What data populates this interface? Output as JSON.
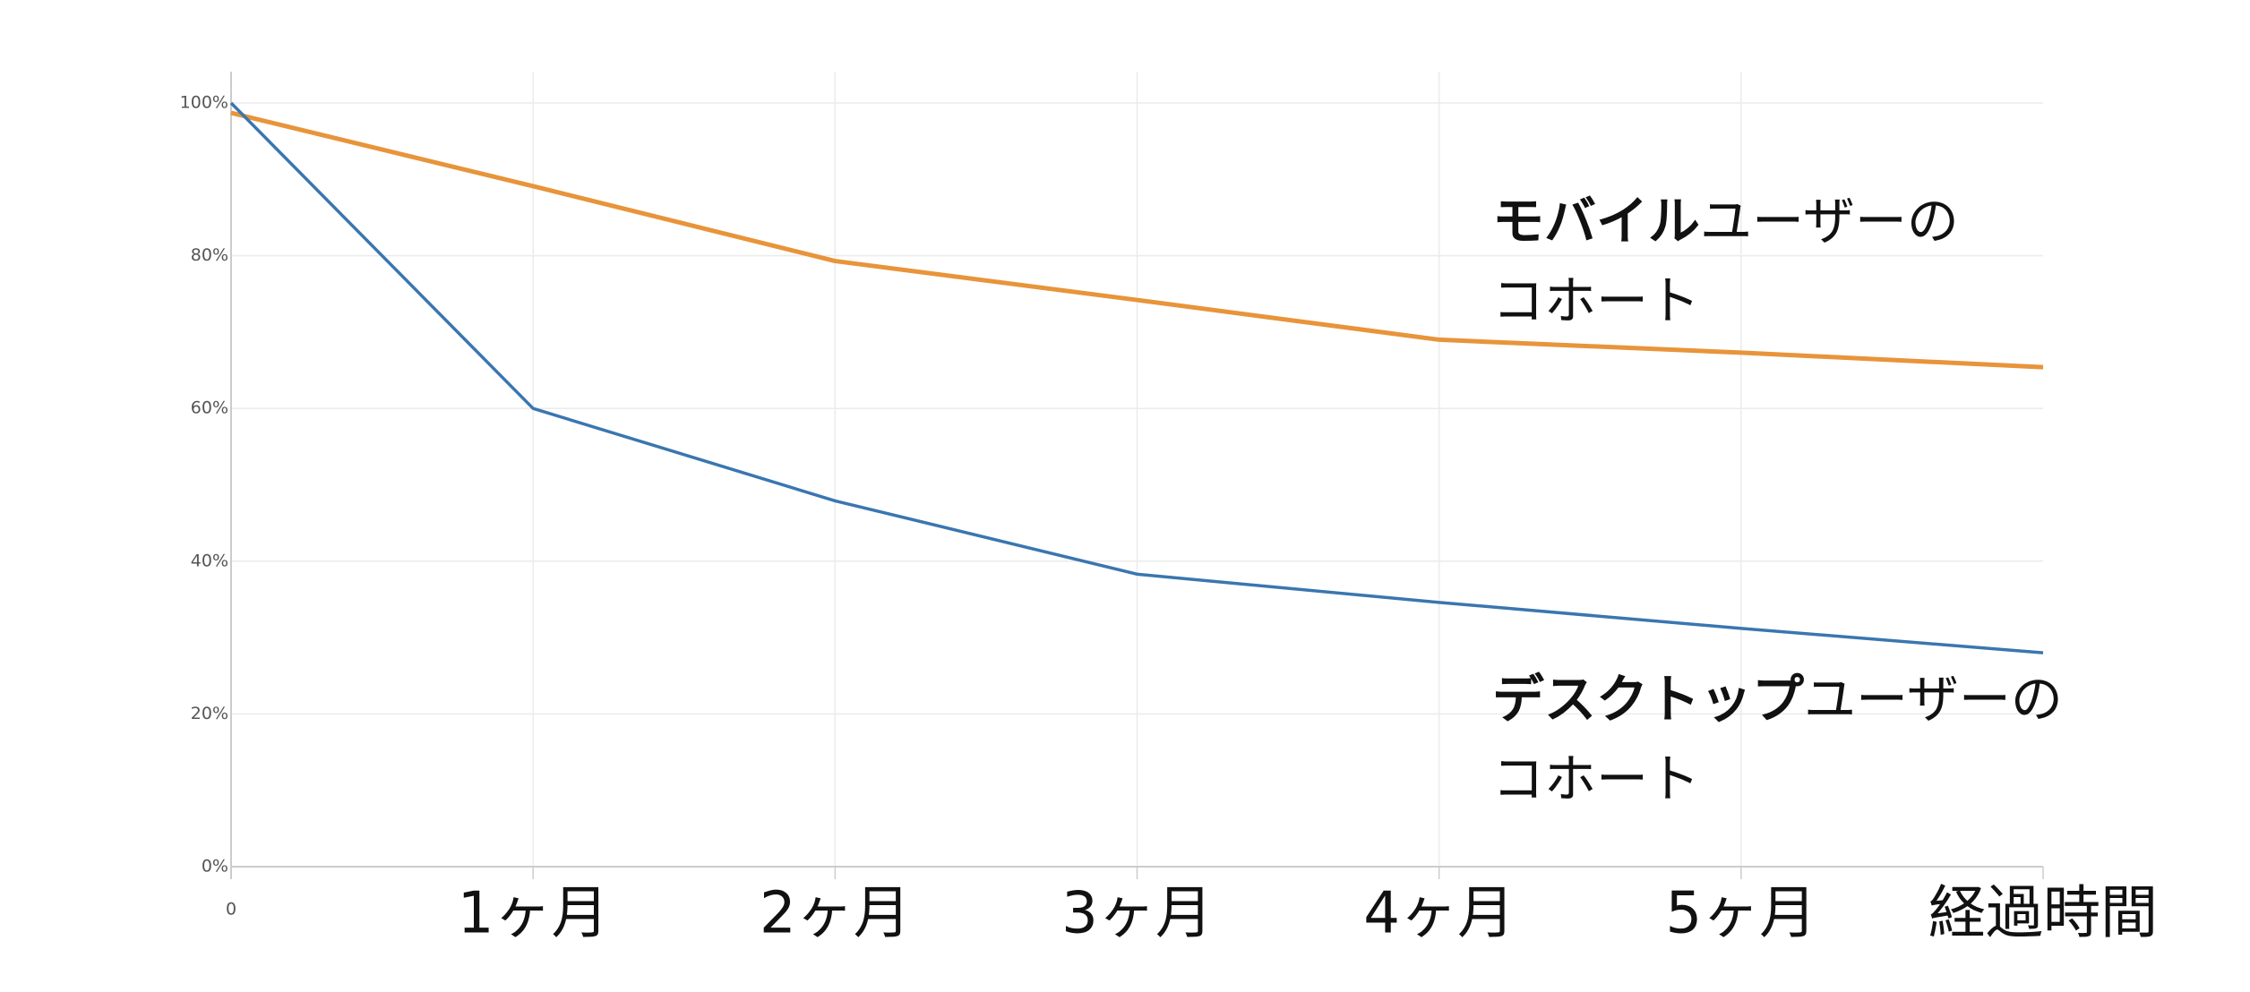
{
  "chart_data": {
    "type": "line",
    "x": [
      0,
      1,
      2,
      3,
      4,
      5,
      6
    ],
    "xlim": [
      0,
      6
    ],
    "xticks": [
      0,
      {
        "value": 1,
        "label": "1ヶ月"
      },
      {
        "value": 2,
        "label": "2ヶ月"
      },
      {
        "value": 3,
        "label": "3ヶ月"
      },
      {
        "value": 4,
        "label": "4ヶ月"
      },
      {
        "value": 5,
        "label": "5ヶ月"
      },
      {
        "value": 6,
        "label": "経過時間"
      }
    ],
    "ylim": [
      0,
      100
    ],
    "yticks": [
      {
        "value": 0,
        "label": "0%"
      },
      {
        "value": 20,
        "label": "20%"
      },
      {
        "value": 40,
        "label": "40%"
      },
      {
        "value": 60,
        "label": "60%"
      },
      {
        "value": 80,
        "label": "80%"
      },
      {
        "value": 100,
        "label": "100%"
      }
    ],
    "grid": true,
    "series": [
      {
        "color": "#e8943a",
        "values": [
          98.7,
          89.1,
          79.3,
          74.2,
          69.0,
          67.3,
          65.4
        ]
      },
      {
        "color": "#3a76b0",
        "values": [
          100,
          60,
          47.9,
          38.3,
          34.6,
          31.2,
          28.0
        ]
      }
    ],
    "annotations": [
      {
        "bold": "モバイル",
        "text": "ユーザーの",
        "line2": "コホート"
      },
      {
        "bold": "デスクトップ",
        "text": "ユーザーの",
        "line2": "コホート"
      }
    ]
  }
}
